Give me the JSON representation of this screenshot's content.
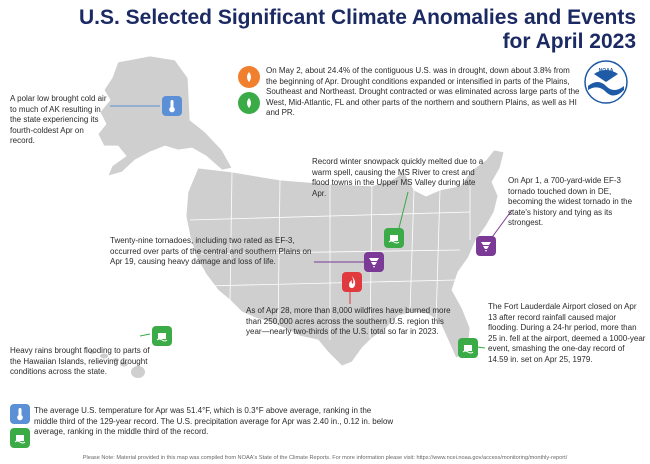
{
  "title": {
    "line1": "U.S. Selected Significant Climate Anomalies and Events",
    "line2": "for April 2023"
  },
  "colors": {
    "title": "#1b2a63",
    "map_land": "#cfcfcf",
    "state_border": "#ffffff",
    "temperature_blue": "#5b8fd6",
    "drought_orange": "#f07f2e",
    "wet_green": "#3bab48",
    "tornado_purple": "#7a3a96",
    "wildfire_red": "#e0393e",
    "noaa_blue": "#1f5aa6"
  },
  "logo": {
    "text": "NOAA"
  },
  "annotations": {
    "alaska": "A polar low brought cold air to much of AK resulting in the state experiencing its fourth-coldest Apr on record.",
    "drought": "On May 2, about 24.4% of the contiguous U.S. was in drought, down about 3.8% from the beginning of Apr. Drought conditions expanded or intensified in parts of the Plains, Southeast and Northeast. Drought contracted or was eliminated across large parts of the West, Mid-Atlantic, FL and other parts of the northern and southern Plains, as well as HI and PR.",
    "snowpack": "Record winter snowpack quickly melted due to a warm spell, causing the MS River to crest and flood towns in the Upper MS Valley during late Apr.",
    "delaware": "On Apr 1, a 700-yard-wide EF-3 tornado touched down in DE, becoming the widest tornado in the state's history and tying as its strongest.",
    "tornadoes": "Twenty-nine tornadoes, including two rated as EF-3, occurred over parts of the central and southern Plains on Apr 19, causing heavy damage and loss of life.",
    "florida": "The Fort Lauderdale Airport closed on Apr 13 after record rainfall caused major flooding. During a 24-hr period, more than 25 in. fell at the airport, deemed a 1000-year event, smashing the one-day record of 14.59 in. set on Apr 25, 1979.",
    "wildfires": "As of Apr 28, more than 8,000 wildfires have burned more than 250,000 acres across the southern U.S. region this year—nearly two-thirds of the U.S. total so far in 2023.",
    "hawaii": "Heavy rains brought flooding to parts of the Hawaiian Islands, relieving drought conditions across the state.",
    "national_temp": "The average U.S. temperature for Apr was 51.4°F, which is 0.3°F above average, ranking in the middle third of the 129-year record.",
    "national_precip": "The U.S. precipitation average for Apr was 2.40 in., 0.12 in. below average, ranking in the middle third of the record."
  },
  "footer": "Please Note: Material provided in this map was compiled from NOAA's State of the Climate Reports. For more information please visit: https://www.ncei.noaa.gov/access/monitoring/monthly-report/"
}
